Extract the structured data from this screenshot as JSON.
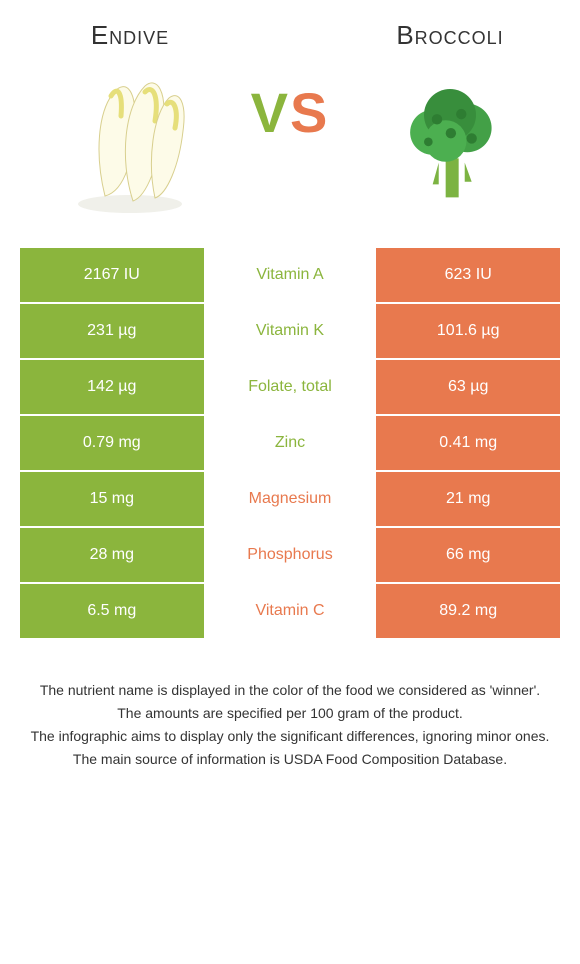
{
  "header": {
    "left_title": "Endive",
    "right_title": "Broccoli",
    "vs_v": "V",
    "vs_s": "S"
  },
  "colors": {
    "left": "#8bb53d",
    "right": "#e8794e"
  },
  "rows": [
    {
      "left": "2167 IU",
      "label": "Vitamin A",
      "right": "623 IU",
      "winner": "left"
    },
    {
      "left": "231 µg",
      "label": "Vitamin K",
      "right": "101.6 µg",
      "winner": "left"
    },
    {
      "left": "142 µg",
      "label": "Folate, total",
      "right": "63 µg",
      "winner": "left"
    },
    {
      "left": "0.79 mg",
      "label": "Zinc",
      "right": "0.41 mg",
      "winner": "left"
    },
    {
      "left": "15 mg",
      "label": "Magnesium",
      "right": "21 mg",
      "winner": "right"
    },
    {
      "left": "28 mg",
      "label": "Phosphorus",
      "right": "66 mg",
      "winner": "right"
    },
    {
      "left": "6.5 mg",
      "label": "Vitamin C",
      "right": "89.2 mg",
      "winner": "right"
    }
  ],
  "notes": [
    "The nutrient name is displayed in the color of the food we considered as 'winner'.",
    "The amounts are specified per 100 gram of the product.",
    "The infographic aims to display only the significant differences, ignoring minor ones.",
    "The main source of information is USDA Food Composition Database."
  ]
}
